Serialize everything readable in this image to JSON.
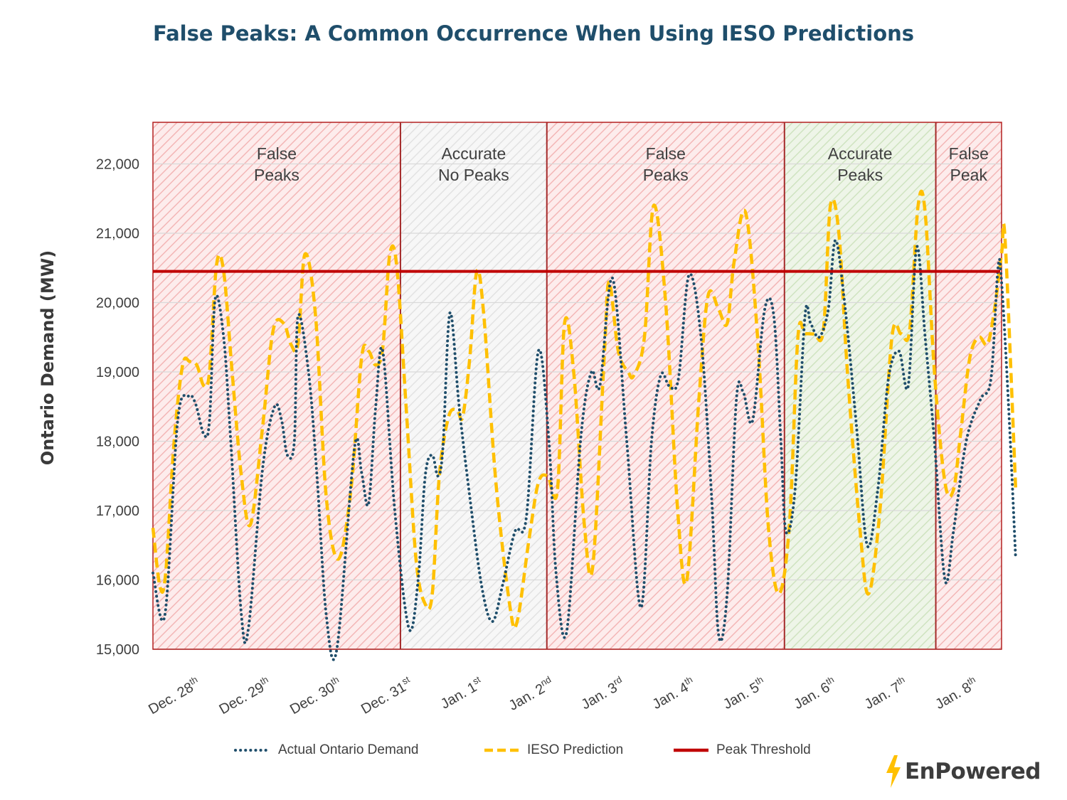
{
  "chart_data": {
    "type": "line",
    "title": "False Peaks: A Common Occurrence When Using IESO Predictions",
    "ylabel": "Ontario Demand (MW)",
    "xlabel": "",
    "ylim": [
      15000,
      22600
    ],
    "yticks": [
      {
        "value": 15000,
        "label": "15,000"
      },
      {
        "value": 16000,
        "label": "16,000"
      },
      {
        "value": 17000,
        "label": "17,000"
      },
      {
        "value": 18000,
        "label": "18,000"
      },
      {
        "value": 19000,
        "label": "19,000"
      },
      {
        "value": 20000,
        "label": "20,000"
      },
      {
        "value": 21000,
        "label": "21,000"
      },
      {
        "value": 22000,
        "label": "22,000"
      }
    ],
    "xlim": [
      0,
      12
    ],
    "categories": [
      {
        "day": 0.5,
        "base": "Dec. 28",
        "sup": "th"
      },
      {
        "day": 1.5,
        "base": "Dec. 29",
        "sup": "th"
      },
      {
        "day": 2.5,
        "base": "Dec. 30",
        "sup": "th"
      },
      {
        "day": 3.5,
        "base": "Dec. 31",
        "sup": "st"
      },
      {
        "day": 4.5,
        "base": "Jan. 1",
        "sup": "st"
      },
      {
        "day": 5.5,
        "base": "Jan. 2",
        "sup": "nd"
      },
      {
        "day": 6.5,
        "base": "Jan. 3",
        "sup": "rd"
      },
      {
        "day": 7.5,
        "base": "Jan. 4",
        "sup": "th"
      },
      {
        "day": 8.5,
        "base": "Jan. 5",
        "sup": "th"
      },
      {
        "day": 9.5,
        "base": "Jan. 6",
        "sup": "th"
      },
      {
        "day": 10.5,
        "base": "Jan. 7",
        "sup": "th"
      },
      {
        "day": 11.5,
        "base": "Jan. 8",
        "sup": "th"
      }
    ],
    "regions": [
      {
        "start": 0.0,
        "end": 3.5,
        "kind": "false",
        "label_lines": [
          "False",
          "Peaks"
        ]
      },
      {
        "start": 3.5,
        "end": 5.57,
        "kind": "neutral",
        "label_lines": [
          "Accurate",
          "No Peaks"
        ]
      },
      {
        "start": 5.57,
        "end": 8.93,
        "kind": "false",
        "label_lines": [
          "False",
          "Peaks"
        ]
      },
      {
        "start": 8.93,
        "end": 11.07,
        "kind": "accurate",
        "label_lines": [
          "Accurate",
          "Peaks"
        ]
      },
      {
        "start": 11.07,
        "end": 12.0,
        "kind": "false",
        "label_lines": [
          "False",
          "Peak"
        ]
      }
    ],
    "threshold": {
      "name": "Peak Threshold",
      "value": 20450,
      "color": "#c00000"
    },
    "series": [
      {
        "name": "Actual Ontario Demand",
        "style": "dotted",
        "color": "#1f4e6b",
        "points": [
          [
            0.0,
            16100
          ],
          [
            0.17,
            15500
          ],
          [
            0.35,
            18300
          ],
          [
            0.5,
            18650
          ],
          [
            0.6,
            18550
          ],
          [
            0.72,
            18100
          ],
          [
            0.8,
            18300
          ],
          [
            0.88,
            20050
          ],
          [
            1.0,
            19500
          ],
          [
            1.1,
            18000
          ],
          [
            1.25,
            15500
          ],
          [
            1.35,
            15300
          ],
          [
            1.55,
            17600
          ],
          [
            1.72,
            18500
          ],
          [
            1.82,
            18300
          ],
          [
            1.9,
            17800
          ],
          [
            2.0,
            18000
          ],
          [
            2.05,
            19800
          ],
          [
            2.2,
            19000
          ],
          [
            2.32,
            17500
          ],
          [
            2.45,
            15500
          ],
          [
            2.6,
            15000
          ],
          [
            2.85,
            17900
          ],
          [
            2.95,
            17550
          ],
          [
            3.05,
            17100
          ],
          [
            3.15,
            18500
          ],
          [
            3.25,
            19300
          ],
          [
            3.42,
            17000
          ],
          [
            3.62,
            15300
          ],
          [
            3.75,
            16000
          ],
          [
            3.85,
            17500
          ],
          [
            3.95,
            17800
          ],
          [
            4.03,
            17500
          ],
          [
            4.1,
            17900
          ],
          [
            4.2,
            19850
          ],
          [
            4.33,
            18500
          ],
          [
            4.48,
            17200
          ],
          [
            4.65,
            15900
          ],
          [
            4.8,
            15400
          ],
          [
            4.95,
            15950
          ],
          [
            5.12,
            16700
          ],
          [
            5.28,
            16900
          ],
          [
            5.45,
            19300
          ],
          [
            5.6,
            18000
          ],
          [
            5.7,
            16100
          ],
          [
            5.85,
            15250
          ],
          [
            6.05,
            18050
          ],
          [
            6.2,
            19000
          ],
          [
            6.32,
            18800
          ],
          [
            6.5,
            20350
          ],
          [
            6.7,
            18000
          ],
          [
            6.9,
            15600
          ],
          [
            7.05,
            18000
          ],
          [
            7.18,
            18950
          ],
          [
            7.3,
            18800
          ],
          [
            7.43,
            18900
          ],
          [
            7.58,
            20400
          ],
          [
            7.75,
            19500
          ],
          [
            7.9,
            17200
          ],
          [
            8.0,
            15200
          ],
          [
            8.12,
            15800
          ],
          [
            8.25,
            18600
          ],
          [
            8.35,
            18700
          ],
          [
            8.48,
            18300
          ],
          [
            8.65,
            19900
          ],
          [
            8.78,
            19800
          ],
          [
            8.88,
            18000
          ],
          [
            8.95,
            16700
          ],
          [
            9.08,
            17300
          ],
          [
            9.22,
            19800
          ],
          [
            9.3,
            19700
          ],
          [
            9.42,
            19500
          ],
          [
            9.55,
            19900
          ],
          [
            9.65,
            20900
          ],
          [
            9.78,
            20000
          ],
          [
            9.95,
            18200
          ],
          [
            10.1,
            16500
          ],
          [
            10.25,
            17300
          ],
          [
            10.4,
            18900
          ],
          [
            10.55,
            19300
          ],
          [
            10.68,
            18800
          ],
          [
            10.8,
            20800
          ],
          [
            10.92,
            19500
          ],
          [
            11.05,
            18000
          ],
          [
            11.2,
            16000
          ],
          [
            11.32,
            16700
          ],
          [
            11.5,
            18000
          ],
          [
            11.7,
            18600
          ],
          [
            11.85,
            18900
          ],
          [
            11.95,
            20500
          ],
          [
            12.0,
            20300
          ],
          [
            12.1,
            18500
          ],
          [
            12.2,
            16300
          ]
        ]
      },
      {
        "name": "IESO Prediction",
        "style": "dashed",
        "color": "#ffc000",
        "points": [
          [
            0.0,
            16750
          ],
          [
            0.1,
            15900
          ],
          [
            0.18,
            16100
          ],
          [
            0.3,
            18000
          ],
          [
            0.42,
            19100
          ],
          [
            0.52,
            19150
          ],
          [
            0.62,
            19100
          ],
          [
            0.72,
            18800
          ],
          [
            0.8,
            19000
          ],
          [
            0.9,
            20550
          ],
          [
            1.0,
            20450
          ],
          [
            1.12,
            19000
          ],
          [
            1.25,
            17500
          ],
          [
            1.38,
            16800
          ],
          [
            1.55,
            18200
          ],
          [
            1.7,
            19600
          ],
          [
            1.85,
            19700
          ],
          [
            1.95,
            19400
          ],
          [
            2.05,
            19400
          ],
          [
            2.15,
            20700
          ],
          [
            2.3,
            19800
          ],
          [
            2.45,
            17200
          ],
          [
            2.62,
            16300
          ],
          [
            2.8,
            17300
          ],
          [
            2.95,
            19200
          ],
          [
            3.05,
            19300
          ],
          [
            3.15,
            19100
          ],
          [
            3.25,
            19350
          ],
          [
            3.35,
            20700
          ],
          [
            3.45,
            20500
          ],
          [
            3.58,
            18500
          ],
          [
            3.72,
            16300
          ],
          [
            3.85,
            15650
          ],
          [
            3.95,
            15800
          ],
          [
            4.05,
            17500
          ],
          [
            4.18,
            18350
          ],
          [
            4.3,
            18450
          ],
          [
            4.38,
            18350
          ],
          [
            4.48,
            19200
          ],
          [
            4.58,
            20450
          ],
          [
            4.68,
            19800
          ],
          [
            4.85,
            17400
          ],
          [
            5.05,
            15600
          ],
          [
            5.15,
            15400
          ],
          [
            5.32,
            16600
          ],
          [
            5.45,
            17400
          ],
          [
            5.58,
            17500
          ],
          [
            5.72,
            17300
          ],
          [
            5.82,
            19700
          ],
          [
            5.95,
            19000
          ],
          [
            6.1,
            16800
          ],
          [
            6.22,
            16200
          ],
          [
            6.38,
            19200
          ],
          [
            6.45,
            20300
          ],
          [
            6.58,
            19300
          ],
          [
            6.72,
            19000
          ],
          [
            6.8,
            18950
          ],
          [
            6.95,
            19500
          ],
          [
            7.08,
            21400
          ],
          [
            7.25,
            20000
          ],
          [
            7.42,
            17000
          ],
          [
            7.55,
            16000
          ],
          [
            7.72,
            18600
          ],
          [
            7.85,
            20100
          ],
          [
            8.0,
            19900
          ],
          [
            8.12,
            19700
          ],
          [
            8.22,
            20600
          ],
          [
            8.38,
            21300
          ],
          [
            8.55,
            19500
          ],
          [
            8.7,
            16800
          ],
          [
            8.85,
            15800
          ],
          [
            9.0,
            16800
          ],
          [
            9.12,
            19500
          ],
          [
            9.22,
            19550
          ],
          [
            9.35,
            19550
          ],
          [
            9.48,
            19600
          ],
          [
            9.58,
            21400
          ],
          [
            9.7,
            21000
          ],
          [
            9.82,
            19000
          ],
          [
            10.0,
            16700
          ],
          [
            10.12,
            15800
          ],
          [
            10.28,
            17000
          ],
          [
            10.45,
            19500
          ],
          [
            10.58,
            19550
          ],
          [
            10.7,
            19600
          ],
          [
            10.82,
            21400
          ],
          [
            10.92,
            21300
          ],
          [
            11.05,
            19000
          ],
          [
            11.2,
            17400
          ],
          [
            11.32,
            17300
          ],
          [
            11.42,
            18100
          ],
          [
            11.55,
            19200
          ],
          [
            11.68,
            19500
          ],
          [
            11.8,
            19400
          ],
          [
            11.9,
            19900
          ],
          [
            12.0,
            20700
          ],
          [
            12.05,
            20900
          ],
          [
            12.2,
            17300
          ]
        ]
      }
    ],
    "legend": [
      {
        "label": "Actual Ontario Demand",
        "style": "dotted",
        "color": "#1f4e6b"
      },
      {
        "label": "IESO Prediction",
        "style": "dashed",
        "color": "#ffc000"
      },
      {
        "label": "Peak Threshold",
        "style": "solid",
        "color": "#c00000"
      }
    ],
    "legend_position": "bottom",
    "grid": true
  },
  "brand": {
    "name": "EnPowered",
    "bolt_color": "#ffc000"
  }
}
